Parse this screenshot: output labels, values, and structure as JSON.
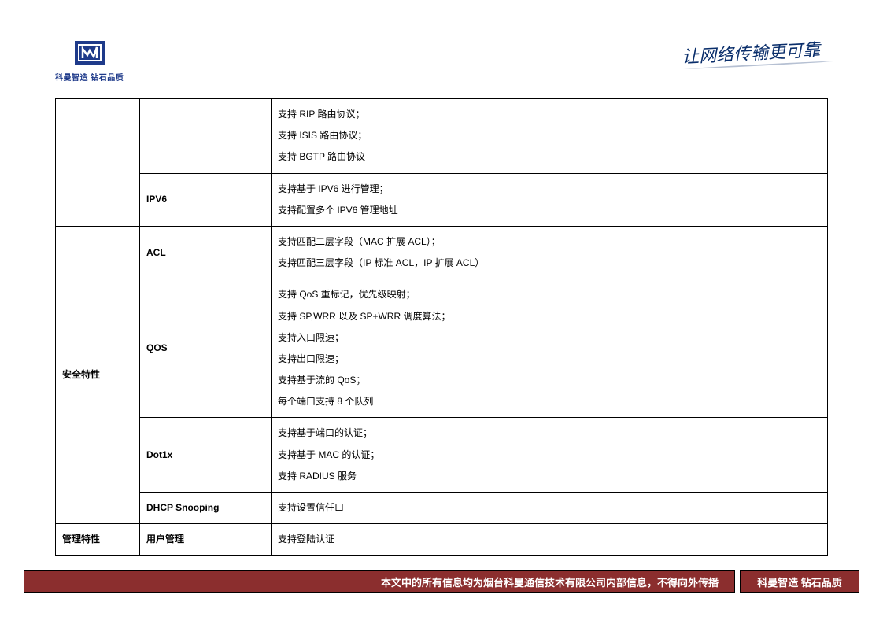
{
  "header": {
    "logo_text": "科曼智造 钻石品质",
    "slogan": "让网络传输更可靠",
    "logo_colors": {
      "primary": "#1e3a8a",
      "accent": "#ffffff"
    }
  },
  "table": {
    "border_color": "#000000",
    "font_size": 12,
    "rows": [
      {
        "cat": "",
        "feature": "",
        "desc": [
          "支持 RIP 路由协议；",
          "支持 ISIS 路由协议；",
          "支持 BGTP 路由协议"
        ]
      },
      {
        "cat": null,
        "feature": "IPV6",
        "desc": [
          "支持基于 IPV6 进行管理；",
          "支持配置多个 IPV6 管理地址"
        ]
      },
      {
        "cat": "安全特性",
        "feature": "ACL",
        "desc": [
          "支持匹配二层字段（MAC 扩展 ACL）；",
          "支持匹配三层字段（IP 标准 ACL，IP 扩展 ACL）"
        ]
      },
      {
        "cat": null,
        "feature": "QOS",
        "desc": [
          "支持 QoS 重标记，优先级映射；",
          "支持 SP,WRR 以及 SP+WRR 调度算法；",
          "支持入口限速；",
          "支持出口限速；",
          "支持基于流的 QoS；",
          "每个端口支持 8 个队列"
        ]
      },
      {
        "cat": null,
        "feature": "Dot1x",
        "desc": [
          "支持基于端口的认证；",
          "支持基于 MAC 的认证；",
          "支持 RADIUS 服务"
        ]
      },
      {
        "cat": null,
        "feature": "DHCP Snooping",
        "desc": [
          "支持设置信任口"
        ]
      },
      {
        "cat": "管理特性",
        "feature": "用户管理",
        "desc": [
          "支持登陆认证"
        ]
      }
    ]
  },
  "footer": {
    "notice": "本文中的所有信息均为烟台科曼通信技术有限公司内部信息，不得向外传播",
    "brand": "科曼智造 钻石品质",
    "background_color": "#8b2e2e",
    "text_color": "#ffffff"
  }
}
